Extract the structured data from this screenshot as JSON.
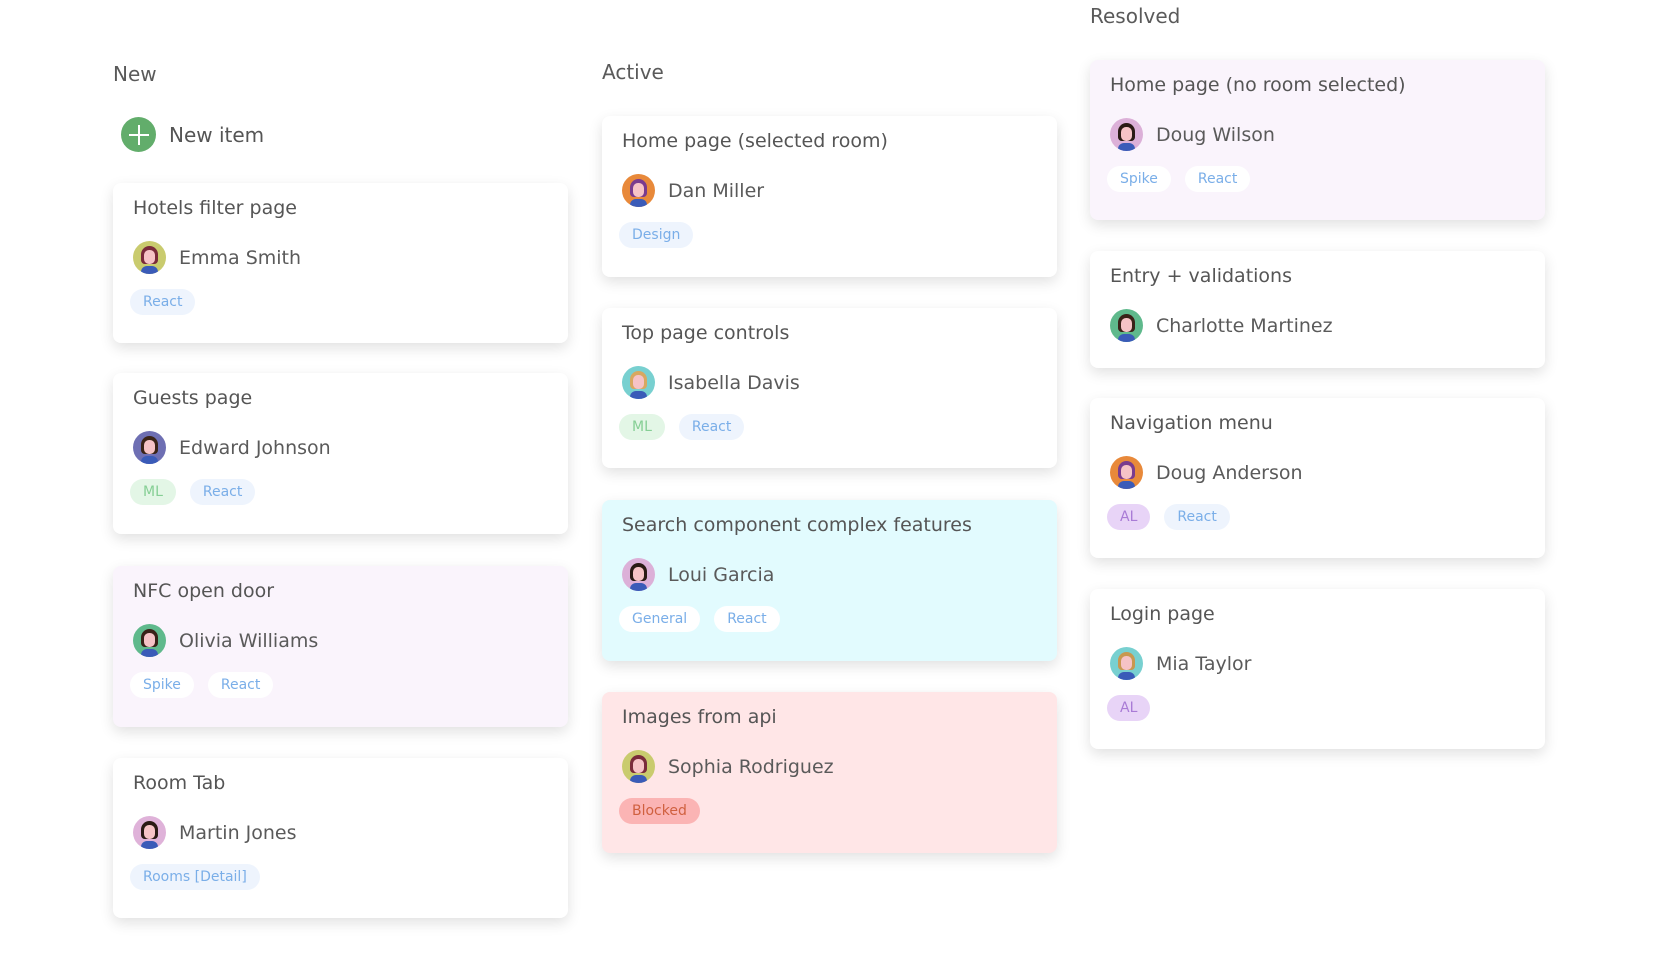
{
  "colors": {
    "accent_add": "#62ad6b",
    "tint_lavender": "#faf4fc",
    "tint_cyan": "#e2fbfe",
    "tint_pink": "#ffe6e7"
  },
  "columns": [
    {
      "title": "New",
      "new_item_label": "New item",
      "cards": [
        {
          "title": "Hotels filter page",
          "assignee": "Emma Smith",
          "avatar": "woman-avatar",
          "avatar_bg": "#c9cb6e",
          "hair": "#7a2b3a",
          "tint": "",
          "tags": [
            {
              "label": "React",
              "kind": "react"
            }
          ]
        },
        {
          "title": "Guests page",
          "assignee": "Edward Johnson",
          "avatar": "man-avatar",
          "avatar_bg": "#6e6fb3",
          "hair": "#3b2418",
          "tint": "",
          "tags": [
            {
              "label": "ML",
              "kind": "ml"
            },
            {
              "label": "React",
              "kind": "react"
            }
          ]
        },
        {
          "title": "NFC open door",
          "assignee": "Olivia Williams",
          "avatar": "woman-avatar",
          "avatar_bg": "#5fb98c",
          "hair": "#3a2218",
          "tint": "#faf4fc",
          "tags": [
            {
              "label": "Spike",
              "kind": "react"
            },
            {
              "label": "React",
              "kind": "react"
            }
          ]
        },
        {
          "title": "Room Tab",
          "assignee": "Martin Jones",
          "avatar": "man-avatar",
          "avatar_bg": "#dfb2d9",
          "hair": "#2a1a14",
          "tint": "",
          "tags": [
            {
              "label": "Rooms [Detail]",
              "kind": "react"
            }
          ]
        }
      ]
    },
    {
      "title": "Active",
      "cards": [
        {
          "title": "Home page (selected room)",
          "assignee": "Dan Miller",
          "avatar": "man-avatar",
          "avatar_bg": "#e8893a",
          "hair": "#7a3b8e",
          "tint": "",
          "tags": [
            {
              "label": "Design",
              "kind": "react"
            }
          ]
        },
        {
          "title": "Top page controls",
          "assignee": "Isabella Davis",
          "avatar": "woman-avatar",
          "avatar_bg": "#78d0d0",
          "hair": "#d8a860",
          "tint": "",
          "tags": [
            {
              "label": "ML",
              "kind": "ml"
            },
            {
              "label": "React",
              "kind": "react"
            }
          ]
        },
        {
          "title": "Search component complex features",
          "assignee": "Loui Garcia",
          "avatar": "man-avatar",
          "avatar_bg": "#dcb0d8",
          "hair": "#2a1a14",
          "tint": "#e2fbfe",
          "tags": [
            {
              "label": "General",
              "kind": "react"
            },
            {
              "label": "React",
              "kind": "react"
            }
          ]
        },
        {
          "title": "Images from api",
          "assignee": "Sophia Rodriguez",
          "avatar": "woman-avatar",
          "avatar_bg": "#c9cb6e",
          "hair": "#7a2b3a",
          "tint": "#ffe6e7",
          "tags": [
            {
              "label": "Blocked",
              "kind": "blocked"
            }
          ]
        }
      ]
    },
    {
      "title": "Resolved",
      "cards": [
        {
          "title": "Home page (no room selected)",
          "assignee": "Doug Wilson",
          "avatar": "man-avatar",
          "avatar_bg": "#dcb0d8",
          "hair": "#2a1a14",
          "tint": "#faf4fc",
          "tags": [
            {
              "label": "Spike",
              "kind": "react"
            },
            {
              "label": "React",
              "kind": "react"
            }
          ]
        },
        {
          "title": "Entry + validations",
          "assignee": "Charlotte Martinez",
          "avatar": "woman-avatar",
          "avatar_bg": "#5fb98c",
          "hair": "#3a2218",
          "tint": "",
          "tags": []
        },
        {
          "title": "Navigation menu",
          "assignee": "Doug Anderson",
          "avatar": "man-avatar",
          "avatar_bg": "#e8893a",
          "hair": "#7a3b8e",
          "tint": "",
          "tags": [
            {
              "label": "AL",
              "kind": "al"
            },
            {
              "label": "React",
              "kind": "react"
            }
          ]
        },
        {
          "title": "Login page",
          "assignee": "Mia Taylor",
          "avatar": "woman-avatar",
          "avatar_bg": "#78d0d0",
          "hair": "#c89850",
          "tint": "",
          "tags": [
            {
              "label": "AL",
              "kind": "al"
            }
          ]
        }
      ]
    }
  ]
}
